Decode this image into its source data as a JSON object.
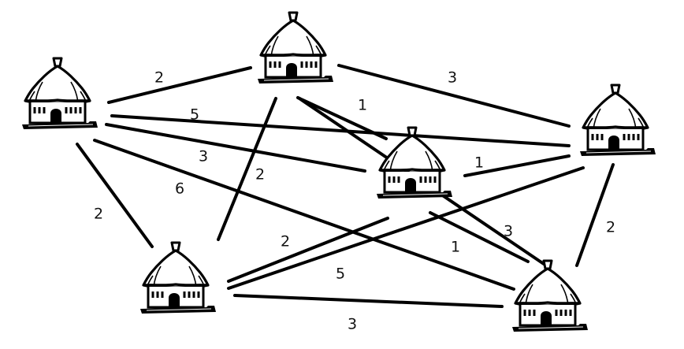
{
  "diagram": {
    "nodes": [
      {
        "id": "hut-a",
        "icon": "hut-icon"
      },
      {
        "id": "hut-b",
        "icon": "hut-icon"
      },
      {
        "id": "hut-c",
        "icon": "hut-icon"
      },
      {
        "id": "hut-d",
        "icon": "hut-icon"
      },
      {
        "id": "hut-e",
        "icon": "hut-icon"
      },
      {
        "id": "hut-f",
        "icon": "hut-icon"
      }
    ],
    "edges": [
      {
        "from": "hut-a",
        "to": "hut-b",
        "weight": "2"
      },
      {
        "from": "hut-b",
        "to": "hut-c",
        "weight": "3"
      },
      {
        "from": "hut-b",
        "to": "hut-d",
        "weight": "1"
      },
      {
        "from": "hut-a",
        "to": "hut-c",
        "weight": "5"
      },
      {
        "from": "hut-a",
        "to": "hut-d",
        "weight": "3"
      },
      {
        "from": "hut-d",
        "to": "hut-c",
        "weight": "1"
      },
      {
        "from": "hut-b",
        "to": "hut-e",
        "weight": "2"
      },
      {
        "from": "hut-a",
        "to": "hut-f",
        "weight": "6"
      },
      {
        "from": "hut-a",
        "to": "hut-e",
        "weight": "2"
      },
      {
        "from": "hut-e",
        "to": "hut-d",
        "weight": "2"
      },
      {
        "from": "hut-b",
        "to": "hut-f",
        "weight": "3"
      },
      {
        "from": "hut-c",
        "to": "hut-f",
        "weight": "2"
      },
      {
        "from": "hut-d",
        "to": "hut-f",
        "weight": "1"
      },
      {
        "from": "hut-e",
        "to": "hut-c",
        "weight": "5"
      },
      {
        "from": "hut-e",
        "to": "hut-f",
        "weight": "3"
      }
    ],
    "colors": {
      "line": "#000000",
      "background": "#ffffff",
      "text": "#111111"
    }
  }
}
